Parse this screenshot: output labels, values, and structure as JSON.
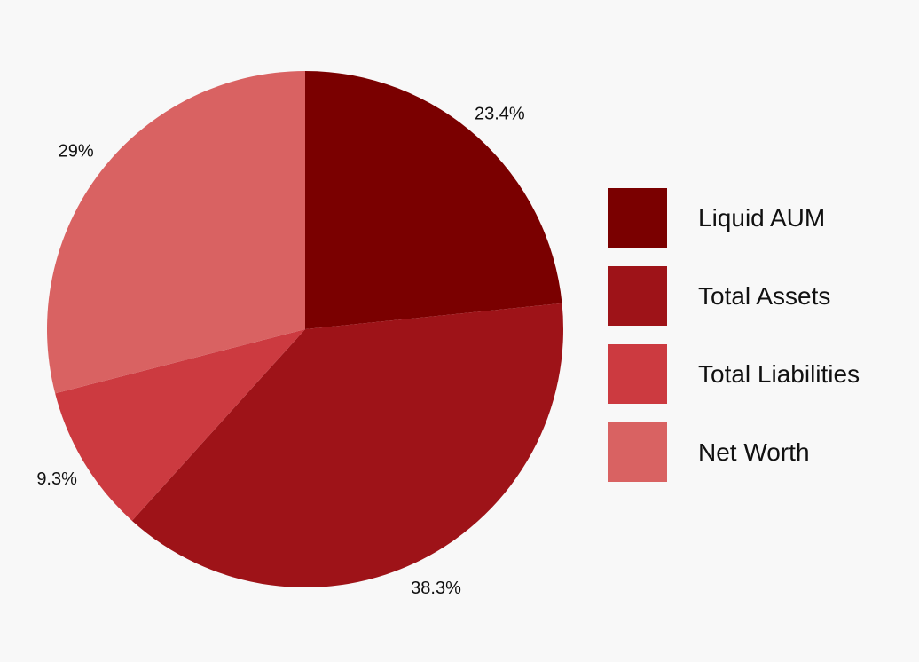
{
  "chart_data": {
    "type": "pie",
    "categories": [
      "Liquid AUM",
      "Total Assets",
      "Total Liabilities",
      "Net Worth"
    ],
    "values": [
      23.4,
      38.3,
      9.3,
      29
    ],
    "data_labels": [
      "23.4%",
      "38.3%",
      "9.3%",
      "29%"
    ],
    "colors": [
      "#7a0000",
      "#9e1318",
      "#cc3a40",
      "#d96262"
    ],
    "legend_position": "right",
    "start_angle_deg": 0,
    "direction": "clockwise"
  }
}
